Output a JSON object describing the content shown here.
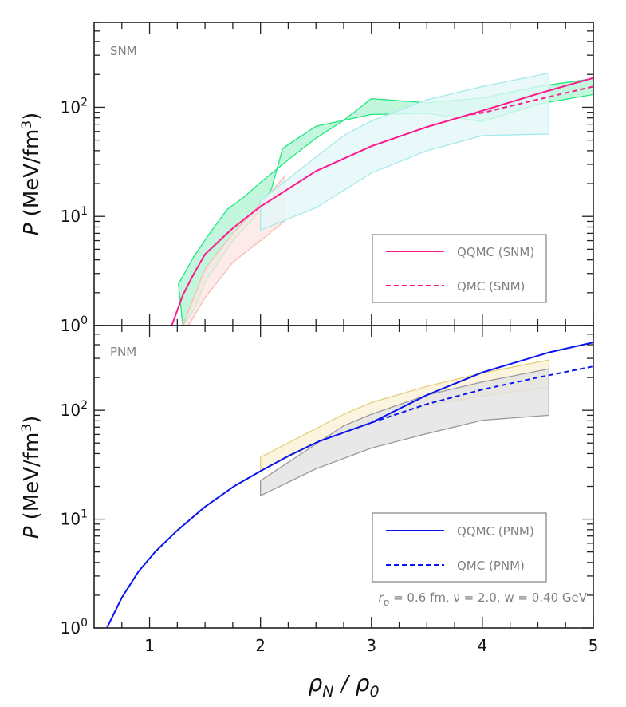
{
  "chart_data": [
    {
      "type": "line",
      "panel": "top",
      "panel_label": "SNM",
      "xlabel": "ρN / ρ0",
      "ylabel": "P (MeV/fm3)",
      "xlim": [
        0.5,
        5
      ],
      "ylim": [
        1,
        600
      ],
      "yscale": "log",
      "xticks": [
        1,
        2,
        3,
        4,
        5
      ],
      "yticks": [
        1,
        10,
        100
      ],
      "ytick_labels": [
        [
          "10",
          "0"
        ],
        [
          "10",
          "1"
        ],
        [
          "10",
          "2"
        ]
      ],
      "legend": {
        "placement": "lower-right",
        "entries": [
          "QQMC (SNM)",
          "QMC (SNM)"
        ]
      },
      "bands": [
        {
          "color": "#b3f5d6",
          "edge": "#1ee87c",
          "x_upper": [
            1.26,
            1.4,
            1.55,
            1.7,
            1.85,
            2.0,
            2.25,
            2.5,
            2.75,
            3.0,
            3.5,
            4.0,
            4.5,
            5.0
          ],
          "upper": [
            2.4,
            4.3,
            7.2,
            11.6,
            15,
            20.5,
            33,
            52,
            76,
            120,
            110,
            122,
            155,
            183
          ],
          "x_lower": [
            1.3,
            1.4,
            1.5,
            1.75,
            2.0,
            2.1,
            2.2,
            2.5,
            3.0,
            3.5,
            4.0,
            4.5,
            5.0
          ],
          "lower": [
            1.0,
            1.4,
            2.5,
            6,
            11.4,
            18,
            42,
            67,
            86,
            88,
            74,
            107,
            131
          ]
        },
        {
          "color": "#fde6e3",
          "edge": "#f7bdb4",
          "x_upper": [
            1.3,
            1.5,
            1.75,
            2.0,
            2.22
          ],
          "upper": [
            1.0,
            3.3,
            7,
            13,
            23.5
          ],
          "x_lower": [
            1.35,
            1.5,
            1.75,
            2.0,
            2.22
          ],
          "lower": [
            1.0,
            1.8,
            3.8,
            6,
            9.1
          ]
        },
        {
          "color": "#e3f7f7",
          "edge": "#a6e9ea",
          "x_upper": [
            2.0,
            2.5,
            2.75,
            3.0,
            3.5,
            4.0,
            4.6
          ],
          "upper": [
            14,
            35,
            55,
            75,
            117,
            155,
            206
          ],
          "x_lower": [
            2.0,
            2.5,
            3.0,
            3.5,
            4.0,
            4.6
          ],
          "lower": [
            7.5,
            12,
            25,
            40,
            55,
            57
          ]
        }
      ],
      "series": [
        {
          "name": "QQMC (SNM)",
          "style": "solid",
          "color": "#ff1a8c",
          "x": [
            1.2,
            1.3,
            1.4,
            1.5,
            1.75,
            2.0,
            2.5,
            3.0,
            3.5,
            4.0,
            4.5,
            5.0
          ],
          "y": [
            1.0,
            1.9,
            3.0,
            4.5,
            7.8,
            12.3,
            26,
            44,
            66,
            93,
            133,
            186
          ]
        },
        {
          "name": "QMC (SNM)",
          "style": "dashed",
          "color": "#ff1a8c",
          "x": [
            3.9,
            4.0,
            4.5,
            5.0
          ],
          "y": [
            86,
            89,
            118,
            155
          ]
        }
      ]
    },
    {
      "type": "line",
      "panel": "bottom",
      "panel_label": "PNM",
      "xlabel": "ρN / ρ0",
      "ylabel": "P (MeV/fm3)",
      "xlim": [
        0.5,
        5
      ],
      "ylim": [
        1,
        600
      ],
      "yscale": "log",
      "xticks": [
        1,
        2,
        3,
        4,
        5
      ],
      "xtick_labels": [
        "1",
        "2",
        "3",
        "4",
        "5"
      ],
      "yticks": [
        1,
        10,
        100
      ],
      "ytick_labels": [
        [
          "10",
          "0"
        ],
        [
          "10",
          "1"
        ],
        [
          "10",
          "2"
        ]
      ],
      "legend": {
        "placement": "lower-right",
        "entries": [
          "QQMC (PNM)",
          "QMC (PNM)"
        ]
      },
      "annotation": {
        "r_sym": "r",
        "r_sub": "p",
        "rest": " = 0.6 fm, ν = 2.0, w = 0.40 GeV"
      },
      "bands": [
        {
          "color": "#faf2d8",
          "edge": "#e6cf7c",
          "x_upper": [
            2.0,
            2.75,
            3.0,
            3.5,
            4.0,
            4.6
          ],
          "upper": [
            37,
            92,
            118,
            166,
            220,
            290
          ],
          "x_lower": [
            2.0,
            2.5,
            3.0,
            3.5,
            4.0,
            4.6
          ],
          "lower": [
            27.7,
            50,
            80,
            111,
            135,
            163
          ]
        },
        {
          "color": "#e2e2e2",
          "edge": "#9a9a9a",
          "x_upper": [
            2.0,
            2.75,
            3.0,
            3.5,
            4.0,
            4.6
          ],
          "upper": [
            22.6,
            72,
            92,
            138,
            182,
            240
          ],
          "x_lower": [
            2.0,
            2.5,
            3.0,
            3.5,
            4.0,
            4.6
          ],
          "lower": [
            16.4,
            29,
            45,
            61,
            81,
            90
          ]
        }
      ],
      "series": [
        {
          "name": "QQMC (PNM)",
          "style": "solid",
          "color": "#0a14f0",
          "x": [
            0.615,
            0.75,
            0.9,
            1.05,
            1.24,
            1.5,
            1.76,
            2.01,
            2.25,
            2.53,
            3.0,
            3.5,
            4.0,
            4.6,
            5.0
          ],
          "y": [
            1.0,
            1.9,
            3.3,
            5.0,
            7.7,
            13,
            20,
            28,
            38,
            52,
            77,
            138,
            223,
            340,
            420
          ]
        },
        {
          "name": "QMC (PNM)",
          "style": "dashed",
          "color": "#0a14f0",
          "x": [
            3.0,
            3.5,
            4.0,
            4.5,
            5.0
          ],
          "y": [
            77,
            114,
            155,
            200,
            253
          ]
        }
      ]
    }
  ]
}
